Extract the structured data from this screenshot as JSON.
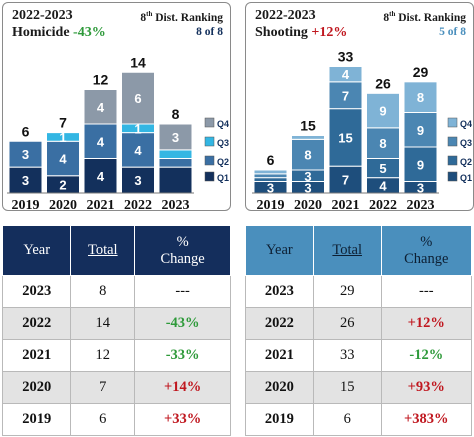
{
  "colors": {
    "q1_left": "#13305c",
    "q2_left": "#3a6fa3",
    "q3_left": "#33b6e3",
    "q4_left": "#8c99a8",
    "q1_right": "#1e4e7c",
    "q2_right": "#2f6a98",
    "q3_right": "#4b86b2",
    "q4_right": "#7fb3d6",
    "increase": "#c0171f",
    "decrease": "#2e9a3a"
  },
  "panels": [
    {
      "title": "2022-2023",
      "subtitle_label": "Homicide ",
      "subtitle_change": "-43%",
      "change_color": "#2e9a3a",
      "rank_label": "8",
      "rank_sup": "th",
      "rank_text": " Dist. Ranking",
      "rank_value": "8 of 8",
      "rank_value_color": "#13305c"
    },
    {
      "title": "2022-2023",
      "subtitle_label": "Shooting ",
      "subtitle_change": "+12%",
      "change_color": "#c0171f",
      "rank_label": "8",
      "rank_sup": "th",
      "rank_text": " Dist. Ranking",
      "rank_value": "5 of 8",
      "rank_value_color": "#4a8fbd"
    }
  ],
  "chart_data": [
    {
      "type": "bar",
      "stacked": true,
      "categories": [
        "2019",
        "2020",
        "2021",
        "2022",
        "2023"
      ],
      "series": [
        {
          "name": "Q1",
          "values": [
            3,
            2,
            4,
            3,
            3
          ]
        },
        {
          "name": "Q2",
          "values": [
            3,
            4,
            4,
            4,
            1
          ]
        },
        {
          "name": "Q3",
          "values": [
            0,
            1,
            0,
            1,
            1
          ]
        },
        {
          "name": "Q4",
          "values": [
            0,
            0,
            4,
            6,
            3
          ]
        }
      ],
      "labels": [
        [
          "3",
          "3",
          "",
          ""
        ],
        [
          "2",
          "4",
          "1",
          ""
        ],
        [
          "4",
          "4",
          "",
          "4"
        ],
        [
          "3",
          "4",
          "1",
          "6"
        ],
        [
          "",
          "",
          "",
          "3"
        ]
      ],
      "totals": [
        6,
        7,
        12,
        14,
        8
      ],
      "ylim": [
        0,
        16
      ],
      "legend_position": "right"
    },
    {
      "type": "bar",
      "stacked": true,
      "categories": [
        "2019",
        "2020",
        "2021",
        "2022",
        "2023"
      ],
      "series": [
        {
          "name": "Q1",
          "values": [
            3,
            3,
            7,
            4,
            3
          ]
        },
        {
          "name": "Q2",
          "values": [
            1,
            3,
            15,
            5,
            9
          ]
        },
        {
          "name": "Q3",
          "values": [
            1,
            8,
            7,
            8,
            9
          ]
        },
        {
          "name": "Q4",
          "values": [
            1,
            1,
            4,
            9,
            8
          ]
        }
      ],
      "labels": [
        [
          "3",
          "",
          "",
          ""
        ],
        [
          "3",
          "3",
          "8",
          ""
        ],
        [
          "7",
          "15",
          "7",
          "4"
        ],
        [
          "4",
          "5",
          "8",
          "9"
        ],
        [
          "3",
          "9",
          "9",
          "8"
        ]
      ],
      "totals": [
        6,
        15,
        33,
        26,
        29
      ],
      "ylim": [
        0,
        36
      ],
      "legend_position": "right"
    }
  ],
  "tables": [
    {
      "headers": [
        "Year",
        "Total",
        "%\nChange"
      ],
      "rows": [
        {
          "year": "2023",
          "total": "8",
          "change": "---",
          "dir": ""
        },
        {
          "year": "2022",
          "total": "14",
          "change": "-43%",
          "dir": "neg"
        },
        {
          "year": "2021",
          "total": "12",
          "change": "-33%",
          "dir": "neg"
        },
        {
          "year": "2020",
          "total": "7",
          "change": "+14%",
          "dir": "pos"
        },
        {
          "year": "2019",
          "total": "6",
          "change": "+33%",
          "dir": "pos"
        }
      ]
    },
    {
      "headers": [
        "Year",
        "Total",
        "%\nChange"
      ],
      "rows": [
        {
          "year": "2023",
          "total": "29",
          "change": "---",
          "dir": ""
        },
        {
          "year": "2022",
          "total": "26",
          "change": "+12%",
          "dir": "pos"
        },
        {
          "year": "2021",
          "total": "33",
          "change": "-12%",
          "dir": "neg"
        },
        {
          "year": "2020",
          "total": "15",
          "change": "+93%",
          "dir": "pos"
        },
        {
          "year": "2019",
          "total": "6",
          "change": "+383%",
          "dir": "pos"
        }
      ]
    }
  ]
}
